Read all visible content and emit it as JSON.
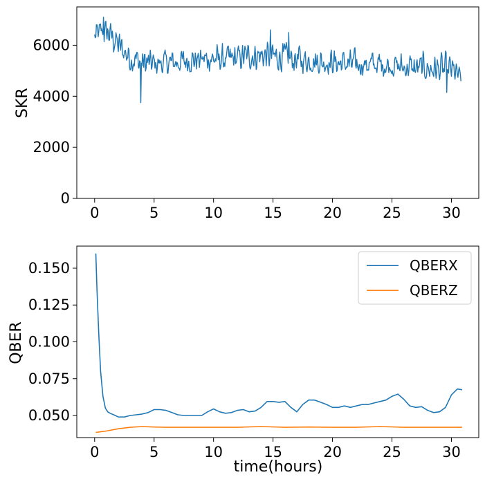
{
  "chart_data": [
    {
      "type": "line",
      "ylabel": "SKR",
      "xlabel": "",
      "xlim": [
        -1.5,
        32.3
      ],
      "ylim": [
        0,
        7500
      ],
      "xticks": [
        0,
        5,
        10,
        15,
        20,
        25,
        30
      ],
      "yticks": [
        0,
        2000,
        4000,
        6000
      ],
      "xtick_labels": [
        "0",
        "5",
        "10",
        "15",
        "20",
        "25",
        "30"
      ],
      "ytick_labels": [
        "0",
        "2000",
        "4000",
        "6000"
      ],
      "grid": false,
      "legend": null,
      "series": [
        {
          "color": "#1f77b4",
          "noisy": true,
          "points": 620,
          "trend": [
            [
              0,
              6300
            ],
            [
              0.5,
              6550
            ],
            [
              1,
              6550
            ],
            [
              1.5,
              6400
            ],
            [
              2,
              6000
            ],
            [
              2.5,
              5750
            ],
            [
              3,
              5550
            ],
            [
              4,
              5350
            ],
            [
              5,
              5250
            ],
            [
              6,
              5300
            ],
            [
              7,
              5300
            ],
            [
              8,
              5400
            ],
            [
              9,
              5450
            ],
            [
              10,
              5450
            ],
            [
              11,
              5400
            ],
            [
              12,
              5450
            ],
            [
              13,
              5600
            ],
            [
              14,
              5600
            ],
            [
              15,
              5550
            ],
            [
              16,
              5450
            ],
            [
              17,
              5400
            ],
            [
              18,
              5350
            ],
            [
              19,
              5300
            ],
            [
              20,
              5300
            ],
            [
              21,
              5250
            ],
            [
              22,
              5200
            ],
            [
              23,
              5200
            ],
            [
              24,
              5200
            ],
            [
              25,
              5150
            ],
            [
              26,
              5100
            ],
            [
              27,
              5050
            ],
            [
              28,
              5050
            ],
            [
              29,
              5000
            ],
            [
              30,
              5000
            ],
            [
              30.8,
              4750
            ]
          ],
          "envelope_lo": [
            [
              0,
              5900
            ],
            [
              1,
              5800
            ],
            [
              2,
              5200
            ],
            [
              3,
              4800
            ],
            [
              4,
              4500
            ],
            [
              5,
              4700
            ],
            [
              10,
              4900
            ],
            [
              15,
              4900
            ],
            [
              20,
              4800
            ],
            [
              25,
              4700
            ],
            [
              30,
              4400
            ],
            [
              30.8,
              4300
            ]
          ],
          "envelope_hi": [
            [
              0,
              7000
            ],
            [
              1,
              7100
            ],
            [
              2,
              6700
            ],
            [
              3,
              6200
            ],
            [
              4,
              6000
            ],
            [
              5,
              5900
            ],
            [
              10,
              6100
            ],
            [
              15,
              6300
            ],
            [
              20,
              6000
            ],
            [
              25,
              5900
            ],
            [
              30,
              5800
            ],
            [
              30.8,
              5100
            ]
          ],
          "spikes": [
            [
              3.9,
              3750
            ],
            [
              0.75,
              7100
            ],
            [
              14.8,
              6600
            ],
            [
              16.3,
              6500
            ],
            [
              29.6,
              4150
            ]
          ]
        }
      ]
    },
    {
      "type": "line",
      "ylabel": "QBER",
      "xlabel": "time(hours)",
      "xlim": [
        -1.5,
        32.3
      ],
      "ylim": [
        0.035,
        0.165
      ],
      "xticks": [
        0,
        5,
        10,
        15,
        20,
        25,
        30
      ],
      "yticks": [
        0.05,
        0.075,
        0.1,
        0.125,
        0.15
      ],
      "xtick_labels": [
        "0",
        "5",
        "10",
        "15",
        "20",
        "25",
        "30"
      ],
      "ytick_labels": [
        "0.050",
        "0.075",
        "0.100",
        "0.125",
        "0.150"
      ],
      "grid": false,
      "legend": {
        "position": "top-right"
      },
      "series": [
        {
          "name": "QBERX",
          "color": "#1f77b4",
          "x": [
            0.1,
            0.2,
            0.35,
            0.5,
            0.7,
            0.9,
            1.1,
            1.3,
            1.6,
            2.0,
            2.5,
            3.0,
            3.5,
            4.0,
            4.5,
            5.0,
            5.5,
            6.0,
            6.5,
            7.0,
            7.5,
            8.0,
            8.5,
            9.0,
            9.5,
            10.0,
            10.5,
            11.0,
            11.5,
            12.0,
            12.5,
            13.0,
            13.5,
            14.0,
            14.5,
            15.0,
            15.5,
            16.0,
            16.5,
            17.0,
            17.5,
            18.0,
            18.5,
            19.0,
            19.5,
            20.0,
            20.5,
            21.0,
            21.5,
            22.0,
            22.5,
            23.0,
            23.5,
            24.0,
            24.5,
            25.0,
            25.5,
            26.0,
            26.5,
            27.0,
            27.5,
            28.0,
            28.5,
            29.0,
            29.5,
            30.0,
            30.5,
            30.9
          ],
          "y": [
            0.16,
            0.135,
            0.105,
            0.08,
            0.063,
            0.055,
            0.0525,
            0.0515,
            0.0505,
            0.049,
            0.049,
            0.05,
            0.0505,
            0.051,
            0.052,
            0.054,
            0.054,
            0.0535,
            0.052,
            0.0505,
            0.05,
            0.05,
            0.05,
            0.05,
            0.0525,
            0.0545,
            0.0525,
            0.0515,
            0.052,
            0.0535,
            0.054,
            0.0525,
            0.053,
            0.0555,
            0.0595,
            0.0595,
            0.059,
            0.0595,
            0.0555,
            0.0525,
            0.0575,
            0.0605,
            0.0605,
            0.059,
            0.0575,
            0.0555,
            0.0555,
            0.0565,
            0.0555,
            0.0565,
            0.0575,
            0.0575,
            0.0585,
            0.0595,
            0.0605,
            0.063,
            0.0645,
            0.061,
            0.0565,
            0.0555,
            0.056,
            0.0535,
            0.052,
            0.0525,
            0.0555,
            0.064,
            0.068,
            0.0675
          ]
        },
        {
          "name": "QBERZ",
          "color": "#ff7f0e",
          "x": [
            0.1,
            1,
            2,
            3,
            4,
            5,
            6,
            8,
            10,
            12,
            14,
            16,
            18,
            20,
            22,
            24,
            26,
            28,
            30,
            30.9
          ],
          "y": [
            0.0385,
            0.0395,
            0.041,
            0.042,
            0.0425,
            0.0422,
            0.042,
            0.042,
            0.042,
            0.042,
            0.0425,
            0.042,
            0.0422,
            0.042,
            0.042,
            0.0425,
            0.042,
            0.042,
            0.042,
            0.042
          ]
        }
      ]
    }
  ]
}
